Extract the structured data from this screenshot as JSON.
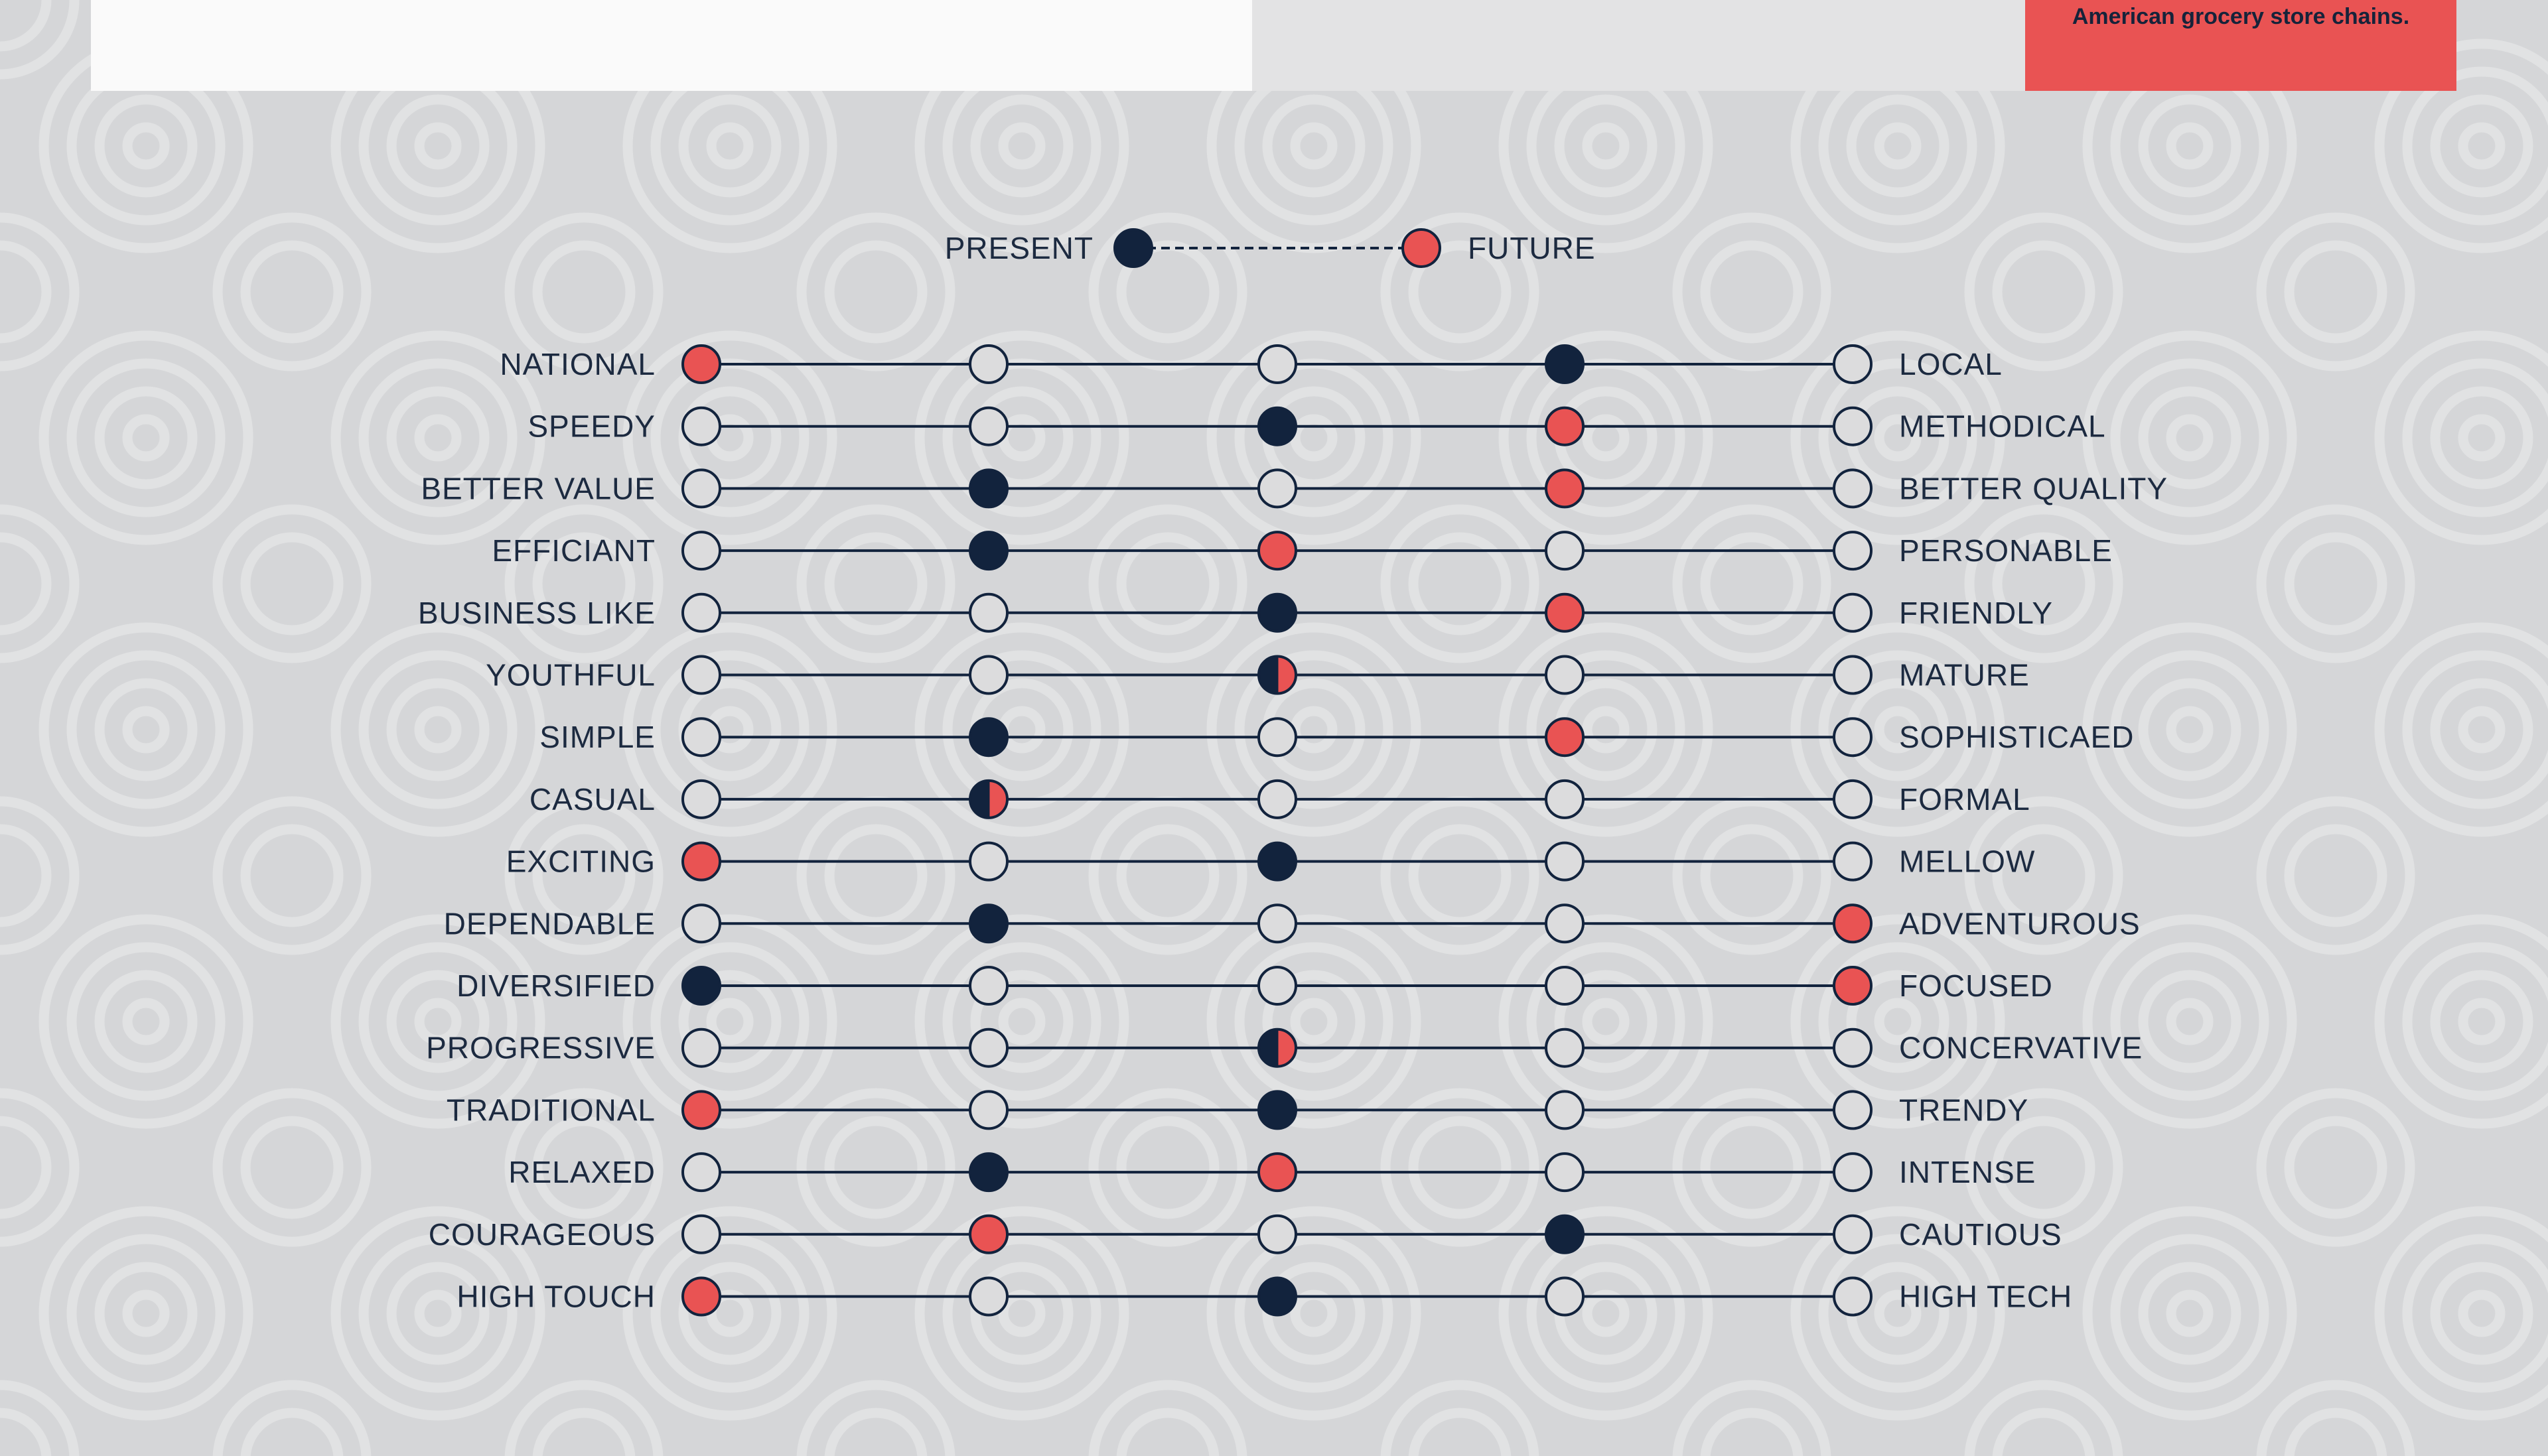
{
  "header": {
    "note_text": "American grocery store chains."
  },
  "colors": {
    "present": "#12233d",
    "future": "#e95353",
    "line": "#12233d",
    "empty": "#dcdcdd",
    "background": "#d5d6d8"
  },
  "chart_data": {
    "type": "scatter",
    "title": "",
    "scale_positions": 5,
    "legend": {
      "placement": "top-center",
      "present_label": "PRESENT",
      "future_label": "FUTURE"
    },
    "rows": [
      {
        "left": "NATIONAL",
        "right": "LOCAL",
        "present": 4,
        "future": 1
      },
      {
        "left": "SPEEDY",
        "right": "METHODICAL",
        "present": 3,
        "future": 4
      },
      {
        "left": "BETTER VALUE",
        "right": "BETTER QUALITY",
        "present": 2,
        "future": 4
      },
      {
        "left": "EFFICIANT",
        "right": "PERSONABLE",
        "present": 2,
        "future": 3
      },
      {
        "left": "BUSINESS LIKE",
        "right": "FRIENDLY",
        "present": 3,
        "future": 4
      },
      {
        "left": "YOUTHFUL",
        "right": "MATURE",
        "present": 3,
        "future": 3
      },
      {
        "left": "SIMPLE",
        "right": "SOPHISTICAED",
        "present": 2,
        "future": 4
      },
      {
        "left": "CASUAL",
        "right": "FORMAL",
        "present": 2,
        "future": 2
      },
      {
        "left": "EXCITING",
        "right": "MELLOW",
        "present": 3,
        "future": 1
      },
      {
        "left": "DEPENDABLE",
        "right": "ADVENTUROUS",
        "present": 2,
        "future": 5
      },
      {
        "left": "DIVERSIFIED",
        "right": "FOCUSED",
        "present": 1,
        "future": 5
      },
      {
        "left": "PROGRESSIVE",
        "right": "CONCERVATIVE",
        "present": 3,
        "future": 3
      },
      {
        "left": "TRADITIONAL",
        "right": "TRENDY",
        "present": 3,
        "future": 1
      },
      {
        "left": "RELAXED",
        "right": "INTENSE",
        "present": 2,
        "future": 3
      },
      {
        "left": "COURAGEOUS",
        "right": "CAUTIOUS",
        "present": 4,
        "future": 2
      },
      {
        "left": "HIGH TOUCH",
        "right": "HIGH TECH",
        "present": 3,
        "future": 1
      }
    ]
  }
}
